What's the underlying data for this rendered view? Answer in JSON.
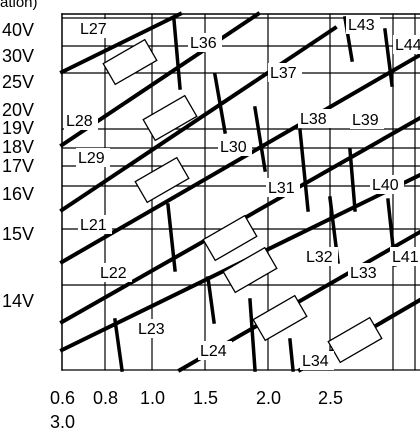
{
  "header": {
    "fragment": "ation)"
  },
  "diagram": {
    "y_labels": [
      "40V",
      "30V",
      "25V",
      "20V",
      "19V",
      "18V",
      "17V",
      "16V",
      "15V",
      "14V"
    ],
    "x_labels": [
      "0.6",
      "0.8",
      "1.0",
      "1.5",
      "2.0",
      "2.5"
    ],
    "x_label_second_line": "3.0",
    "line_labels": [
      "L27",
      "L36",
      "L43",
      "L44",
      "L37",
      "L28",
      "L38",
      "L39",
      "L29",
      "L30",
      "L31",
      "L40",
      "L21",
      "L32",
      "L41",
      "L22",
      "L33",
      "L23",
      "L24",
      "L34"
    ]
  },
  "colors": {
    "ink": "#000000",
    "background": "#ffffff"
  }
}
